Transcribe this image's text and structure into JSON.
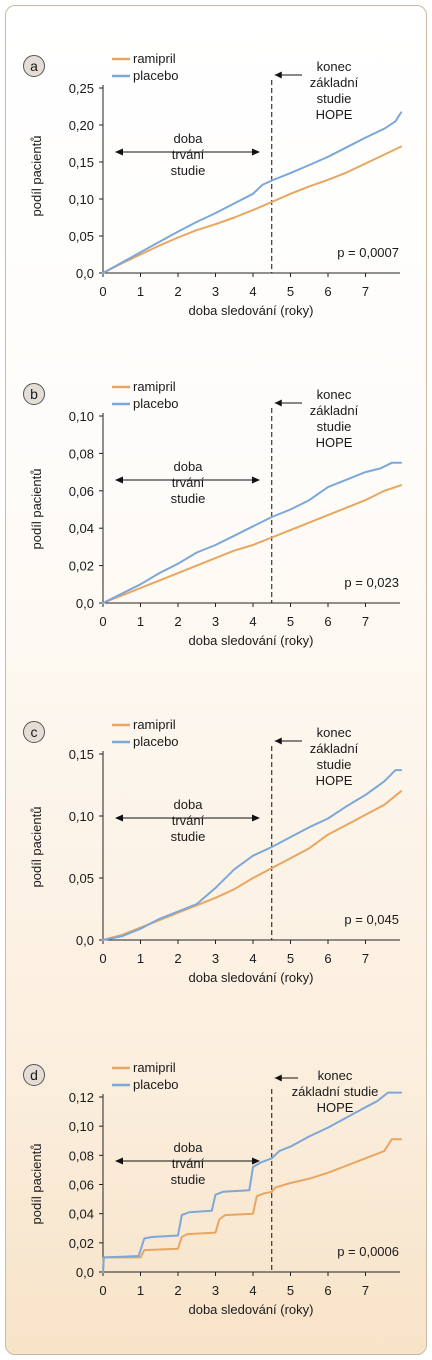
{
  "colors": {
    "ramipril": "#e8a660",
    "placebo": "#7ca7da",
    "axis": "#222222",
    "badge_bg": "#e3ddd6"
  },
  "chart_data": [
    {
      "panel": "a",
      "type": "line",
      "ylabel": "podíl pacientů",
      "xlabel": "doba sledování (roky)",
      "xlim": [
        0,
        8
      ],
      "ylim": [
        0,
        0.25
      ],
      "xticks": [
        "0",
        "1",
        "2",
        "3",
        "4",
        "5",
        "6",
        "7"
      ],
      "yticks": [
        "0,0",
        "0,05",
        "0,10",
        "0,15",
        "0,20",
        "0,25"
      ],
      "legend": [
        "ramipril",
        "placebo"
      ],
      "annotation_left": [
        "doba",
        "trvání",
        "studie"
      ],
      "annotation_right": [
        "konec",
        "základní",
        "studie",
        "HOPE"
      ],
      "p_value": "p = 0,0007",
      "divider_x": 4.5,
      "series": [
        {
          "name": "ramipril",
          "x": [
            0,
            0.5,
            1,
            1.5,
            2,
            2.5,
            3,
            3.5,
            4,
            4.5,
            5,
            5.5,
            6,
            6.5,
            7,
            7.5,
            7.95
          ],
          "y": [
            0,
            0.013,
            0.025,
            0.037,
            0.048,
            0.058,
            0.066,
            0.075,
            0.085,
            0.096,
            0.107,
            0.117,
            0.126,
            0.136,
            0.148,
            0.16,
            0.171
          ]
        },
        {
          "name": "placebo",
          "x": [
            0,
            0.5,
            1,
            1.5,
            2,
            2.5,
            3,
            3.5,
            4,
            4.25,
            4.5,
            5,
            5.5,
            6,
            6.5,
            7,
            7.5,
            7.8,
            7.95
          ],
          "y": [
            0,
            0.014,
            0.028,
            0.042,
            0.056,
            0.069,
            0.081,
            0.094,
            0.107,
            0.119,
            0.125,
            0.135,
            0.146,
            0.157,
            0.17,
            0.183,
            0.195,
            0.205,
            0.217
          ]
        }
      ]
    },
    {
      "panel": "b",
      "type": "line",
      "ylabel": "podíl pacientů",
      "xlabel": "doba sledování (roky)",
      "xlim": [
        0,
        8
      ],
      "ylim": [
        0,
        0.1
      ],
      "xticks": [
        "0",
        "1",
        "2",
        "3",
        "4",
        "5",
        "6",
        "7"
      ],
      "yticks": [
        "0,0",
        "0,02",
        "0,04",
        "0,06",
        "0,08",
        "0,10"
      ],
      "legend": [
        "ramipril",
        "placebo"
      ],
      "annotation_left": [
        "doba",
        "trvání",
        "studie"
      ],
      "annotation_right": [
        "konec",
        "základní",
        "studie",
        "HOPE"
      ],
      "p_value": "p = 0,023",
      "divider_x": 4.5,
      "series": [
        {
          "name": "ramipril",
          "x": [
            0,
            0.5,
            1,
            1.5,
            2,
            2.5,
            3,
            3.5,
            4,
            4.5,
            5,
            5.5,
            6,
            6.5,
            7,
            7.5,
            7.95
          ],
          "y": [
            0,
            0.004,
            0.008,
            0.012,
            0.016,
            0.02,
            0.024,
            0.028,
            0.031,
            0.035,
            0.039,
            0.043,
            0.047,
            0.051,
            0.055,
            0.06,
            0.063
          ]
        },
        {
          "name": "placebo",
          "x": [
            0,
            0.5,
            1,
            1.5,
            2,
            2.5,
            3,
            3.5,
            4,
            4.5,
            5,
            5.5,
            6,
            6.5,
            7,
            7.4,
            7.7,
            7.95
          ],
          "y": [
            0,
            0.005,
            0.01,
            0.016,
            0.021,
            0.027,
            0.031,
            0.036,
            0.041,
            0.046,
            0.05,
            0.055,
            0.062,
            0.066,
            0.07,
            0.072,
            0.075,
            0.075
          ]
        }
      ]
    },
    {
      "panel": "c",
      "type": "line",
      "ylabel": "podíl pacientů",
      "xlabel": "doba sledování (roky)",
      "xlim": [
        0,
        8
      ],
      "ylim": [
        0,
        0.15
      ],
      "xticks": [
        "0",
        "1",
        "2",
        "3",
        "4",
        "5",
        "6",
        "7"
      ],
      "yticks": [
        "0,0",
        "0,05",
        "0,10",
        "0,15"
      ],
      "legend": [
        "ramipril",
        "placebo"
      ],
      "annotation_left": [
        "doba",
        "trvání",
        "studie"
      ],
      "annotation_right": [
        "konec",
        "základní",
        "studie",
        "HOPE"
      ],
      "p_value": "p = 0,045",
      "divider_x": 4.5,
      "series": [
        {
          "name": "ramipril",
          "x": [
            0,
            0.5,
            1,
            1.5,
            2,
            2.5,
            3,
            3.5,
            4,
            4.5,
            5,
            5.5,
            6,
            6.5,
            7,
            7.5,
            7.95
          ],
          "y": [
            0,
            0.004,
            0.01,
            0.016,
            0.022,
            0.028,
            0.034,
            0.041,
            0.05,
            0.058,
            0.066,
            0.074,
            0.085,
            0.093,
            0.101,
            0.109,
            0.12
          ]
        },
        {
          "name": "placebo",
          "x": [
            0,
            0.5,
            1,
            1.5,
            2,
            2.5,
            3,
            3.5,
            4,
            4.5,
            5,
            5.5,
            6,
            6.5,
            7,
            7.5,
            7.8,
            7.95
          ],
          "y": [
            0,
            0.003,
            0.009,
            0.017,
            0.023,
            0.029,
            0.042,
            0.057,
            0.068,
            0.075,
            0.083,
            0.091,
            0.098,
            0.108,
            0.117,
            0.128,
            0.137,
            0.137
          ]
        }
      ]
    },
    {
      "panel": "d",
      "type": "line",
      "ylabel": "podíl pacientů",
      "xlabel": "doba sledování (roky)",
      "xlim": [
        0,
        8
      ],
      "ylim": [
        0,
        0.12
      ],
      "xticks": [
        "0",
        "1",
        "2",
        "3",
        "4",
        "5",
        "6",
        "7"
      ],
      "yticks": [
        "0,0",
        "0,02",
        "0,04",
        "0,06",
        "0,08",
        "0,10",
        "0,12"
      ],
      "legend": [
        "ramipril",
        "placebo"
      ],
      "annotation_left": [
        "doba",
        "trvání",
        "studie"
      ],
      "annotation_right": [
        "konec",
        "základní studie",
        "HOPE"
      ],
      "p_value": "p = 0,0006",
      "divider_x": 4.5,
      "series": [
        {
          "name": "ramipril",
          "x": [
            0,
            0.02,
            0.05,
            1.0,
            1.1,
            2.0,
            2.1,
            2.25,
            3.0,
            3.1,
            3.25,
            4.0,
            4.1,
            4.3,
            4.5,
            4.6,
            5,
            5.5,
            6,
            6.5,
            7,
            7.5,
            7.7,
            7.95
          ],
          "y": [
            0,
            0.01,
            0.01,
            0.01,
            0.015,
            0.016,
            0.024,
            0.026,
            0.027,
            0.036,
            0.039,
            0.04,
            0.052,
            0.054,
            0.055,
            0.058,
            0.061,
            0.064,
            0.068,
            0.073,
            0.078,
            0.083,
            0.091,
            0.091
          ]
        },
        {
          "name": "placebo",
          "x": [
            0,
            0.02,
            0.05,
            0.95,
            1.1,
            1.3,
            2.0,
            2.1,
            2.3,
            2.9,
            3.0,
            3.2,
            3.9,
            4.0,
            4.2,
            4.5,
            4.7,
            5.0,
            5.5,
            6,
            6.5,
            7,
            7.3,
            7.6,
            7.95
          ],
          "y": [
            0,
            0.01,
            0.01,
            0.011,
            0.023,
            0.024,
            0.025,
            0.039,
            0.041,
            0.042,
            0.053,
            0.055,
            0.056,
            0.072,
            0.075,
            0.078,
            0.083,
            0.086,
            0.093,
            0.099,
            0.106,
            0.113,
            0.117,
            0.123,
            0.123
          ]
        }
      ]
    }
  ]
}
